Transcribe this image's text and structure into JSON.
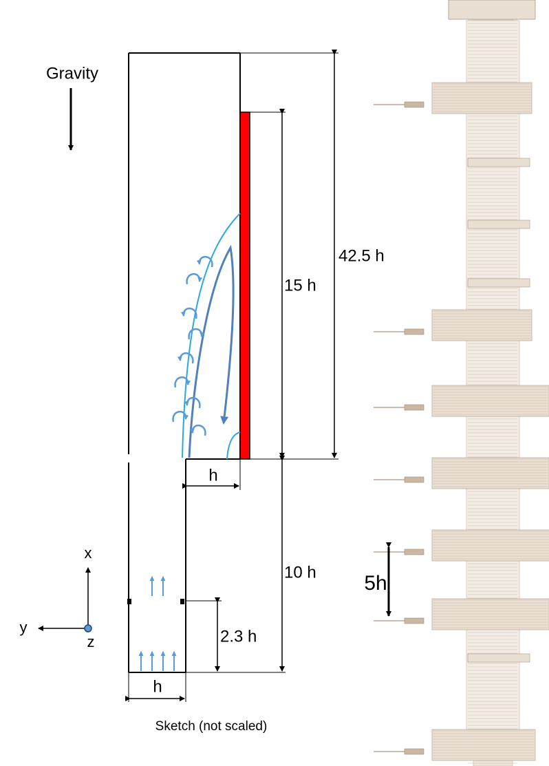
{
  "labels": {
    "gravity": "Gravity",
    "height_total": "42.5 h",
    "height_heated": "15 h",
    "step_width": "h",
    "inlet_length": "10 h",
    "inlet_position": "2.3 h",
    "channel_width": "h",
    "spacing": "5h",
    "axis_x": "x",
    "axis_y": "y",
    "axis_z": "z",
    "caption": "Sketch (not scaled)"
  }
}
